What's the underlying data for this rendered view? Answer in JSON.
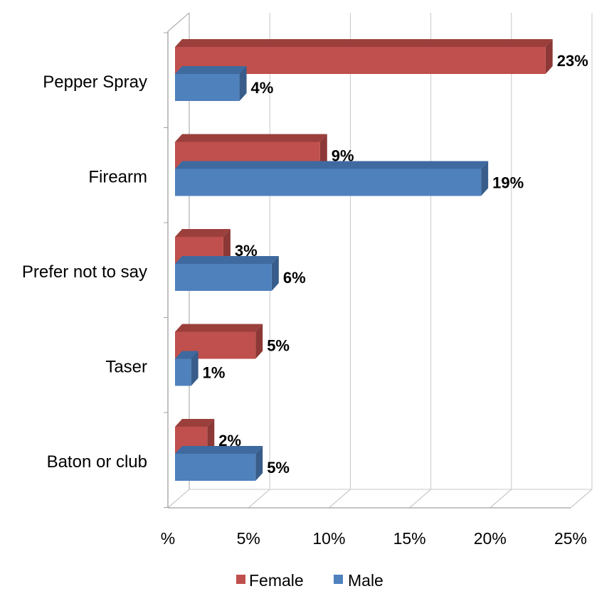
{
  "chart_data": {
    "type": "bar",
    "orientation": "horizontal",
    "style": "3d-clustered",
    "categories": [
      "Pepper Spray",
      "Firearm",
      "Prefer not to say",
      "Taser",
      "Baton or club"
    ],
    "series": [
      {
        "name": "Female",
        "values": [
          23,
          9,
          3,
          5,
          2
        ],
        "labels": [
          "23%",
          "9%",
          "3%",
          "5%",
          "2%"
        ],
        "color": "#c0504d",
        "side_color": "#8c3836",
        "top_color": "#9b3f3c"
      },
      {
        "name": "Male",
        "values": [
          4,
          19,
          6,
          1,
          5
        ],
        "labels": [
          "4%",
          "19%",
          "6%",
          "1%",
          "5%"
        ],
        "color": "#4f81bd",
        "side_color": "#385d8a",
        "top_color": "#3f6aa0"
      }
    ],
    "xlim": [
      0,
      25
    ],
    "ticks": [
      0,
      5,
      10,
      15,
      20,
      25
    ],
    "tick_labels": [
      "%",
      "5%",
      "10%",
      "15%",
      "20%",
      "25%"
    ],
    "title": "",
    "xlabel": "",
    "ylabel": "",
    "grid": true,
    "legend_position": "bottom"
  }
}
